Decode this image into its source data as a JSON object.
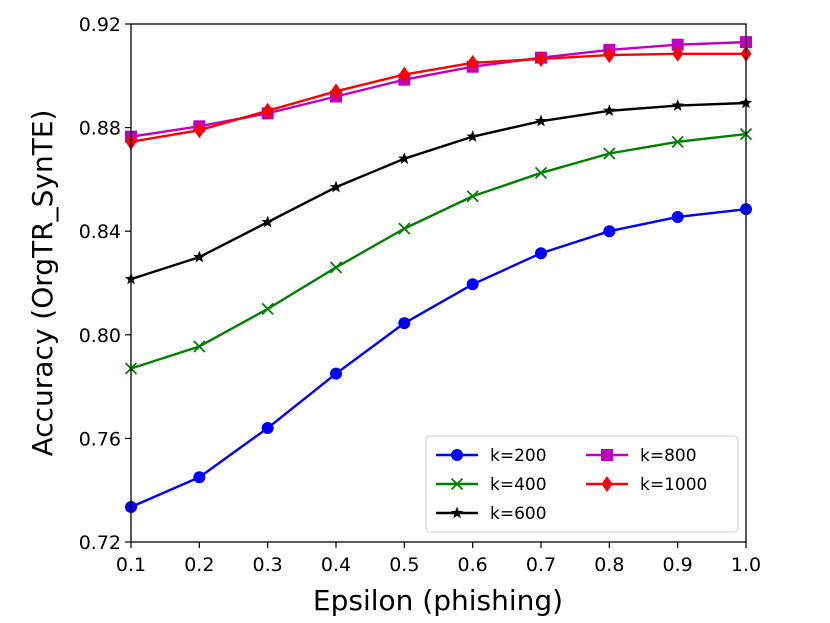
{
  "chart_data": {
    "type": "line",
    "title": "",
    "xlabel": "Epsilon (phishing)",
    "ylabel": "Accuracy (OrgTR_SynTE)",
    "xlim": [
      0.1,
      1.0
    ],
    "ylim": [
      0.72,
      0.92
    ],
    "xticks": [
      "0.1",
      "0.2",
      "0.3",
      "0.4",
      "0.5",
      "0.6",
      "0.7",
      "0.8",
      "0.9",
      "1.0"
    ],
    "yticks": [
      "0.72",
      "0.76",
      "0.80",
      "0.84",
      "0.88",
      "0.92"
    ],
    "grid": false,
    "legend_position": "lower-right",
    "x": [
      0.1,
      0.2,
      0.3,
      0.4,
      0.5,
      0.6,
      0.7,
      0.8,
      0.9,
      1.0
    ],
    "series": [
      {
        "name": "k=200",
        "color": "#0000ff",
        "marker": "circle",
        "values": [
          0.7335,
          0.745,
          0.764,
          0.785,
          0.8045,
          0.8195,
          0.8315,
          0.84,
          0.8455,
          0.8485
        ]
      },
      {
        "name": "k=400",
        "color": "#008000",
        "marker": "x",
        "values": [
          0.787,
          0.7955,
          0.81,
          0.826,
          0.841,
          0.8535,
          0.8625,
          0.87,
          0.8745,
          0.8775
        ]
      },
      {
        "name": "k=600",
        "color": "#000000",
        "marker": "star",
        "values": [
          0.8215,
          0.83,
          0.8435,
          0.857,
          0.868,
          0.8765,
          0.8825,
          0.8865,
          0.8885,
          0.8895
        ]
      },
      {
        "name": "k=800",
        "color": "#bf00bf",
        "marker": "square",
        "values": [
          0.8765,
          0.8805,
          0.8855,
          0.892,
          0.8985,
          0.9035,
          0.907,
          0.91,
          0.912,
          0.913
        ]
      },
      {
        "name": "k=1000",
        "color": "#ff0000",
        "marker": "diamond",
        "values": [
          0.8745,
          0.879,
          0.8865,
          0.894,
          0.9005,
          0.905,
          0.9065,
          0.908,
          0.9085,
          0.9085
        ]
      }
    ]
  }
}
